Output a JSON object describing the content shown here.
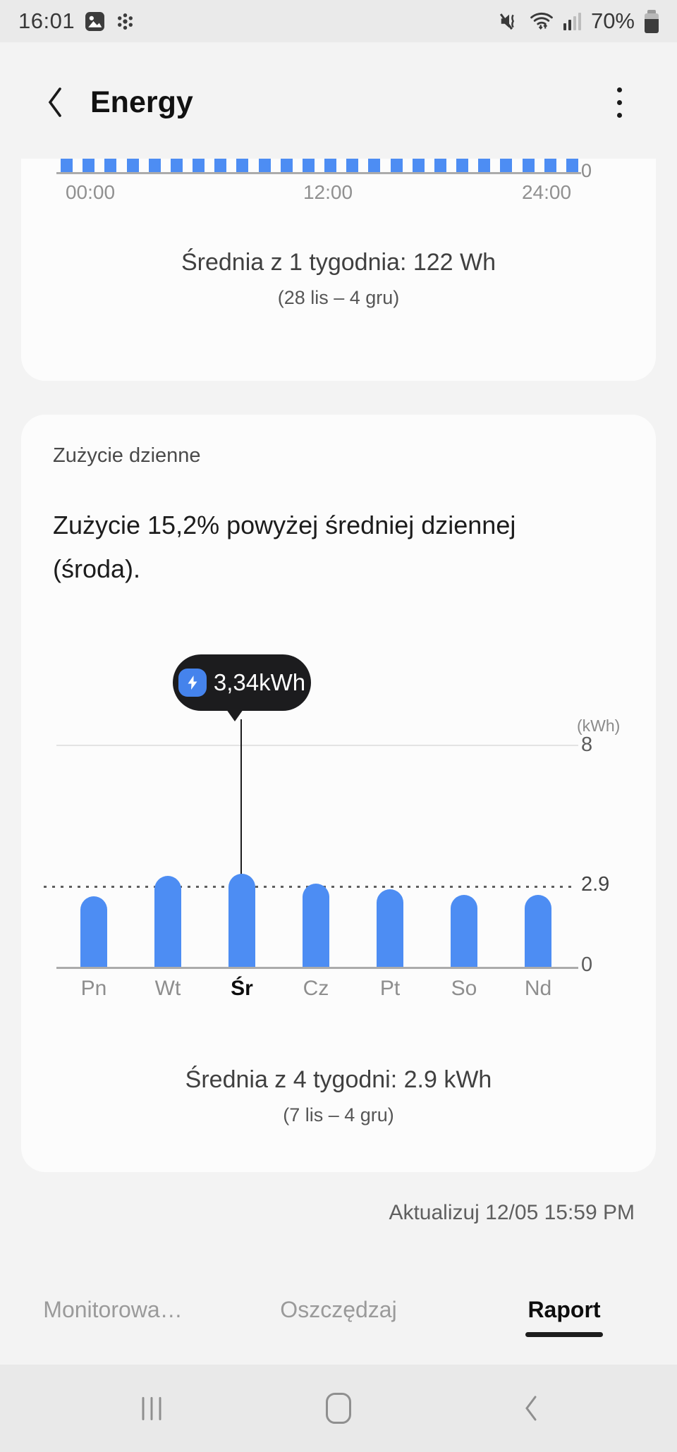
{
  "colors": {
    "bar_blue": "#4D8DF3",
    "tooltip_bg": "#1C1C1E",
    "badge_blue": "#4583EC",
    "card_bg": "#FCFCFC",
    "page_bg": "#F3F3F3"
  },
  "status_bar": {
    "time": "16:01",
    "battery_pct": "70%"
  },
  "header": {
    "title": "Energy"
  },
  "hourly_card": {
    "ticks": [
      "00:00",
      "12:00",
      "24:00"
    ],
    "axis_zero": "0",
    "avg_text": "Średnia z 1 tygodnia: 122 Wh",
    "date_range": "(28 lis – 4 gru)"
  },
  "daily_card": {
    "section_label": "Zużycie dzienne",
    "insight": "Zużycie 15,2% powyżej średniej dziennej (środa).",
    "tooltip_value": "3,34kWh",
    "unit_label": "(kWh)",
    "y_max": "8",
    "y_avg": "2.9",
    "y_zero": "0",
    "avg_text": "Średnia z 4 tygodni: 2.9 kWh",
    "date_range": "(7 lis – 4 gru)"
  },
  "updated_text": "Aktualizuj 12/05 15:59 PM",
  "tabs": [
    {
      "label": "Monitorowa…",
      "active": false
    },
    {
      "label": "Oszczędzaj",
      "active": false
    },
    {
      "label": "Raport",
      "active": true
    }
  ],
  "chart_data": [
    {
      "type": "bar",
      "title": "Średnia z 1 tygodnia: 122 Wh",
      "subtitle": "(28 lis – 4 gru)",
      "x_ticks": [
        "00:00",
        "12:00",
        "24:00"
      ],
      "y_ticks_visible": [
        "0"
      ],
      "bar_count": 24,
      "note": "24 uniform hourly bars, chart top clipped by scroll; only bottoms visible",
      "bar_color": "#4D8DF3"
    },
    {
      "type": "bar",
      "title": "Zużycie dzienne",
      "categories": [
        "Pn",
        "Wt",
        "Śr",
        "Cz",
        "Pt",
        "So",
        "Nd"
      ],
      "values": [
        2.55,
        3.28,
        3.34,
        3.0,
        2.8,
        2.6,
        2.58
      ],
      "selected_index": 2,
      "selected_value_label": "3,34kWh",
      "ylabel": "(kWh)",
      "ylim": [
        0,
        8
      ],
      "yticks": [
        0,
        2.9,
        8
      ],
      "avg_line": 2.9,
      "grid": "avg dotted line at 2.9, solid light line at 8",
      "legend": "none",
      "bar_color": "#4D8DF3"
    }
  ]
}
